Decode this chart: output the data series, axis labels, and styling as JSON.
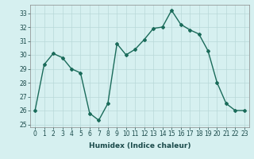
{
  "x": [
    0,
    1,
    2,
    3,
    4,
    5,
    6,
    7,
    8,
    9,
    10,
    11,
    12,
    13,
    14,
    15,
    16,
    17,
    18,
    19,
    20,
    21,
    22,
    23
  ],
  "y": [
    26,
    29.3,
    30.1,
    29.8,
    29.0,
    28.7,
    25.8,
    25.3,
    26.5,
    30.8,
    30.0,
    30.4,
    31.1,
    31.9,
    32.0,
    33.2,
    32.2,
    31.8,
    31.5,
    30.3,
    28.0,
    26.5,
    26.0,
    26.0
  ],
  "xlabel": "Humidex (Indice chaleur)",
  "ylim": [
    24.8,
    33.6
  ],
  "xlim": [
    -0.5,
    23.5
  ],
  "yticks": [
    25,
    26,
    27,
    28,
    29,
    30,
    31,
    32,
    33
  ],
  "xticks": [
    0,
    1,
    2,
    3,
    4,
    5,
    6,
    7,
    8,
    9,
    10,
    11,
    12,
    13,
    14,
    15,
    16,
    17,
    18,
    19,
    20,
    21,
    22,
    23
  ],
  "line_color": "#1a6b5a",
  "marker": "D",
  "marker_size": 2.0,
  "bg_color": "#d6f0f0",
  "grid_color": "#b8d8d8",
  "line_width": 1.0,
  "tick_fontsize": 5.5,
  "xlabel_fontsize": 6.5
}
